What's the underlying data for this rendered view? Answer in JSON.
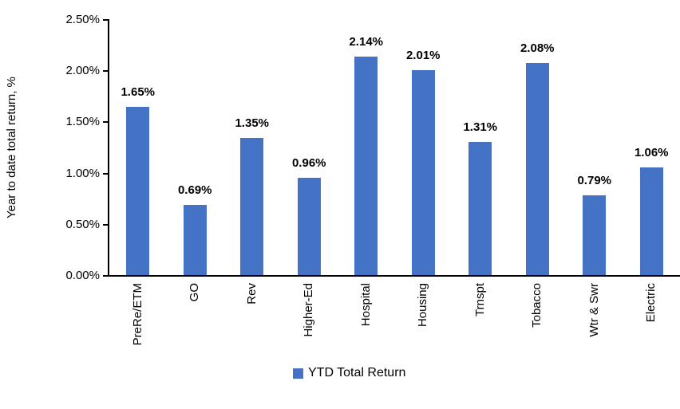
{
  "chart_data": {
    "type": "bar",
    "title": "",
    "ylabel": "Year to date total return, %",
    "xlabel": "",
    "categories": [
      "PreRe/ETM",
      "GO",
      "Rev",
      "Higher-Ed",
      "Hospital",
      "Housing",
      "Trnspt",
      "Tobacco",
      "Wtr & Swr",
      "Electric"
    ],
    "values": [
      1.65,
      0.69,
      1.35,
      0.96,
      2.14,
      2.01,
      1.31,
      2.08,
      0.79,
      1.06
    ],
    "value_labels": [
      "1.65%",
      "0.69%",
      "1.35%",
      "0.96%",
      "2.14%",
      "2.01%",
      "1.31%",
      "2.08%",
      "0.79%",
      "1.06%"
    ],
    "series_name": "YTD Total Return",
    "ylim": [
      0,
      2.5
    ],
    "ytick_values": [
      0,
      0.5,
      1.0,
      1.5,
      2.0,
      2.5
    ],
    "ytick_labels": [
      "0.00%",
      "0.50%",
      "1.00%",
      "1.50%",
      "2.00%",
      "2.50%"
    ],
    "grid": false,
    "legend_position": "bottom-center",
    "bar_color": "#4472C4",
    "axis_color": "#000000",
    "label_color": "#000000"
  },
  "legend": {
    "label": "YTD Total Return"
  }
}
